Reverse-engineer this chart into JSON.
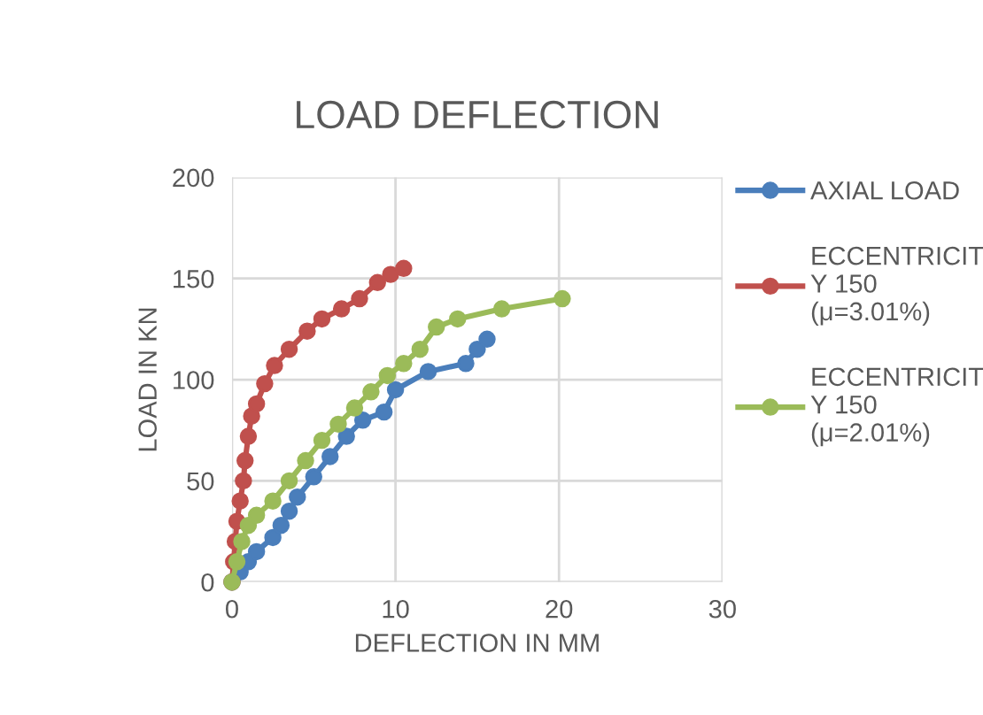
{
  "chart_data": {
    "type": "line",
    "title": "LOAD DEFLECTION",
    "xlabel": "DEFLECTION IN MM",
    "ylabel": "LOAD IN KN",
    "xlim": [
      0,
      30
    ],
    "xticks": [
      0,
      10,
      20,
      30
    ],
    "ylim": [
      0,
      200
    ],
    "yticks": [
      0,
      50,
      100,
      150,
      200
    ],
    "grid": true,
    "legend": "right",
    "marker": "circle",
    "series": [
      {
        "name": "AXIAL LOAD",
        "color": "#4a7ebb",
        "x": [
          0,
          0.5,
          1,
          1.5,
          2.5,
          3,
          3.5,
          4,
          5,
          6,
          7,
          8,
          9.3,
          10,
          12,
          14.3,
          15,
          15.6
        ],
        "values": [
          0,
          5,
          10,
          15,
          22,
          28,
          35,
          42,
          52,
          62,
          72,
          80,
          84,
          95,
          104,
          108,
          115,
          120
        ]
      },
      {
        "name": "ECCENTRICIT\nY 150\n(μ=3.01%)",
        "color": "#c0504d",
        "x": [
          0,
          0.1,
          0.2,
          0.3,
          0.5,
          0.7,
          0.8,
          1,
          1.2,
          1.5,
          2,
          2.6,
          3.5,
          4.6,
          5.5,
          6.7,
          7.8,
          8.9,
          9.7,
          10.5
        ],
        "values": [
          0,
          10,
          20,
          30,
          40,
          50,
          60,
          72,
          82,
          88,
          98,
          107,
          115,
          124,
          130,
          135,
          140,
          148,
          152,
          155
        ]
      },
      {
        "name": "ECCENTRICIT\nY 150\n(μ=2.01%)",
        "color": "#9bbb59",
        "x": [
          0,
          0.3,
          0.6,
          1,
          1.5,
          2.5,
          3.5,
          4.5,
          5.5,
          6.5,
          7.5,
          8.5,
          9.5,
          10.5,
          11.5,
          12.5,
          13.8,
          16.5,
          20.2
        ],
        "values": [
          0,
          10,
          20,
          28,
          33,
          40,
          50,
          60,
          70,
          78,
          86,
          94,
          102,
          108,
          115,
          126,
          130,
          135,
          140
        ]
      }
    ]
  }
}
